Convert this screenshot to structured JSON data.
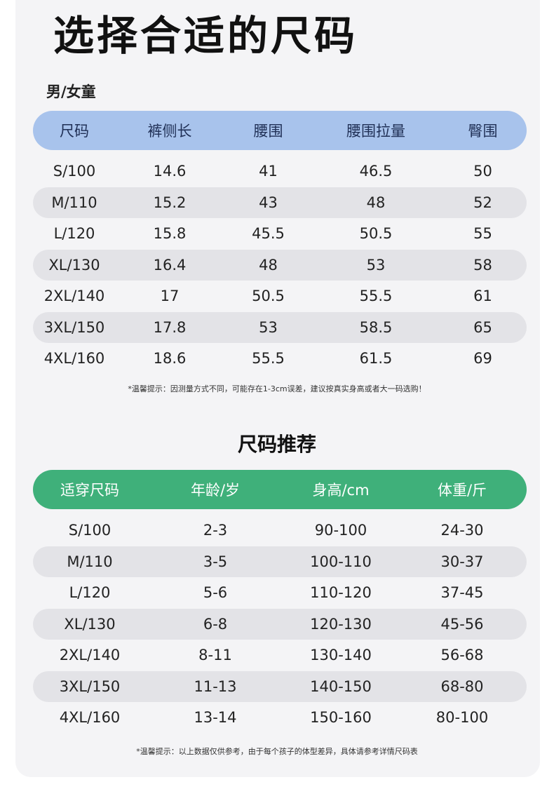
{
  "title": "选择合适的尺码",
  "subtitle": "男/女童",
  "size_table": {
    "headers": [
      "尺码",
      "裤侧长",
      "腰围",
      "腰围拉量",
      "臀围"
    ],
    "rows": [
      [
        "S/100",
        "14.6",
        "41",
        "46.5",
        "50"
      ],
      [
        "M/110",
        "15.2",
        "43",
        "48",
        "52"
      ],
      [
        "L/120",
        "15.8",
        "45.5",
        "50.5",
        "55"
      ],
      [
        "XL/130",
        "16.4",
        "48",
        "53",
        "58"
      ],
      [
        "2XL/140",
        "17",
        "50.5",
        "55.5",
        "61"
      ],
      [
        "3XL/150",
        "17.8",
        "53",
        "58.5",
        "65"
      ],
      [
        "4XL/160",
        "18.6",
        "55.5",
        "61.5",
        "69"
      ]
    ],
    "note": "*温馨提示：因测量方式不同，可能存在1-3cm误差，建议按真实身高或者大一码选购！"
  },
  "recommend_title": "尺码推荐",
  "recommend_table": {
    "headers": [
      "适穿尺码",
      "年龄/岁",
      "身高/cm",
      "体重/斤"
    ],
    "rows": [
      [
        "S/100",
        "2-3",
        "90-100",
        "24-30"
      ],
      [
        "M/110",
        "3-5",
        "100-110",
        "30-37"
      ],
      [
        "L/120",
        "5-6",
        "110-120",
        "37-45"
      ],
      [
        "XL/130",
        "6-8",
        "120-130",
        "45-56"
      ],
      [
        "2XL/140",
        "8-11",
        "130-140",
        "56-68"
      ],
      [
        "3XL/150",
        "11-13",
        "140-150",
        "68-80"
      ],
      [
        "4XL/160",
        "13-14",
        "150-160",
        "80-100"
      ]
    ],
    "note": "*温馨提示：以上数据仅供参考，由于每个孩子的体型差异，具体请参考详情尺码表"
  },
  "colors": {
    "header_blue": "#a8c3ec",
    "header_green": "#3fb07a",
    "row_shade": "#e3e3e7"
  }
}
